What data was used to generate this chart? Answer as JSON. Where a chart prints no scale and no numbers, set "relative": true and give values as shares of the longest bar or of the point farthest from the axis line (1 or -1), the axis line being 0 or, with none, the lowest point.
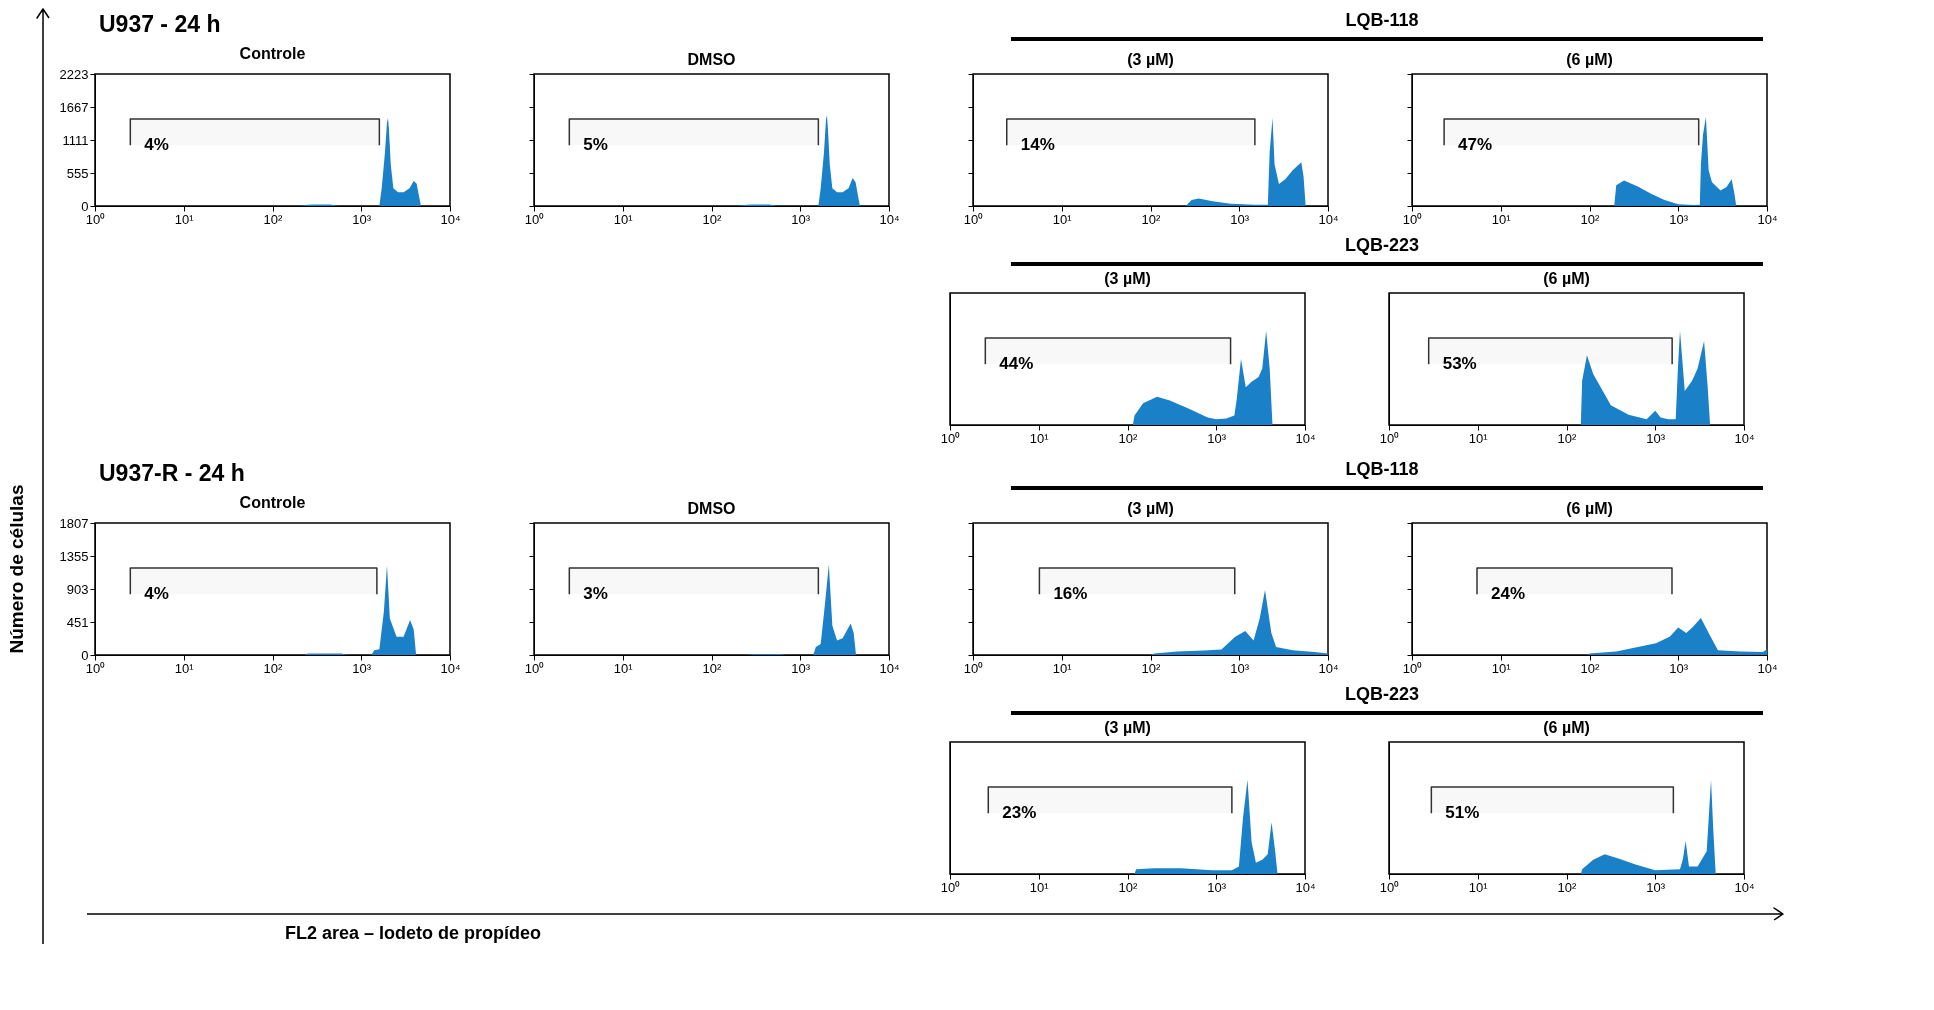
{
  "chart_data": [
    {
      "type": "other",
      "title": "U937  - 24 h"
    },
    {
      "type": "other",
      "title": "LQB-118"
    },
    {
      "type": "area",
      "title": "Controle",
      "log": "x",
      "grid": false,
      "xlim": [
        1,
        10000
      ],
      "ylim": [
        0,
        2223
      ],
      "xticks": [
        {
          "value": 1,
          "label": "10⁰"
        },
        {
          "value": 10,
          "label": "10¹"
        },
        {
          "value": 100,
          "label": "10²"
        },
        {
          "value": 1000,
          "label": "10³"
        },
        {
          "value": 10000,
          "label": "10⁴"
        }
      ],
      "yticks": [
        0,
        555,
        1111,
        1667,
        2223
      ],
      "x": [
        1,
        200,
        250,
        300,
        450,
        550,
        1600,
        1700,
        1850,
        1950,
        2000,
        2050,
        2150,
        2300,
        2600,
        3000,
        3500,
        3900,
        4200,
        4500,
        4700,
        10000
      ],
      "series": [
        {
          "color": "#1a80c8",
          "values": [
            0,
            0,
            20,
            25,
            25,
            0,
            0,
            300,
            900,
            1400,
            1480,
            1300,
            700,
            300,
            230,
            230,
            300,
            420,
            380,
            150,
            0,
            0
          ]
        }
      ],
      "bands": [
        {
          "axis": "x",
          "from": 2.5,
          "to": 1600,
          "label": "4%"
        }
      ]
    },
    {
      "type": "area",
      "title": "DMSO",
      "log": "x",
      "grid": false,
      "tick_labels": "x",
      "xlim": [
        1,
        10000
      ],
      "ylim": [
        0,
        2223
      ],
      "xticks": [
        {
          "value": 1,
          "label": "10⁰"
        },
        {
          "value": 10,
          "label": "10¹"
        },
        {
          "value": 100,
          "label": "10²"
        },
        {
          "value": 1000,
          "label": "10³"
        },
        {
          "value": 10000,
          "label": "10⁴"
        }
      ],
      "yticks": [
        0,
        555,
        1111,
        1667,
        2223
      ],
      "x": [
        1,
        200,
        250,
        300,
        450,
        550,
        1600,
        1700,
        1850,
        1950,
        2000,
        2050,
        2150,
        2300,
        2600,
        3000,
        3500,
        3900,
        4200,
        4500,
        4700,
        10000
      ],
      "series": [
        {
          "color": "#1a80c8",
          "values": [
            0,
            0,
            20,
            25,
            25,
            0,
            0,
            300,
            900,
            1450,
            1530,
            1300,
            700,
            300,
            230,
            230,
            300,
            470,
            400,
            150,
            0,
            0
          ]
        }
      ],
      "bands": [
        {
          "axis": "x",
          "from": 2.5,
          "to": 1600,
          "label": "5%"
        }
      ]
    },
    {
      "type": "area",
      "title": "(3 µM)",
      "log": "x",
      "grid": false,
      "tick_labels": "x",
      "xlim": [
        1,
        10000
      ],
      "ylim": [
        0,
        2223
      ],
      "xticks": [
        {
          "value": 1,
          "label": "10⁰"
        },
        {
          "value": 10,
          "label": "10¹"
        },
        {
          "value": 100,
          "label": "10²"
        },
        {
          "value": 1000,
          "label": "10³"
        },
        {
          "value": 10000,
          "label": "10⁴"
        }
      ],
      "yticks": [
        0,
        555,
        1111,
        1667,
        2223
      ],
      "x": [
        1,
        250,
        290,
        350,
        500,
        800,
        1500,
        2100,
        2200,
        2370,
        2500,
        2800,
        3300,
        4000,
        5000,
        5300,
        5600,
        10000
      ],
      "series": [
        {
          "color": "#1a80c8",
          "values": [
            0,
            0,
            100,
            125,
            80,
            40,
            20,
            20,
            900,
            1480,
            700,
            370,
            450,
            600,
            735,
            500,
            0,
            0
          ]
        }
      ],
      "bands": [
        {
          "axis": "x",
          "from": 2.4,
          "to": 1500,
          "label": "14%"
        }
      ]
    },
    {
      "type": "area",
      "title": "(6 µM)",
      "log": "x",
      "grid": false,
      "tick_labels": "x",
      "xlim": [
        1,
        10000
      ],
      "ylim": [
        0,
        2223
      ],
      "xticks": [
        {
          "value": 1,
          "label": "10⁰"
        },
        {
          "value": 10,
          "label": "10¹"
        },
        {
          "value": 100,
          "label": "10²"
        },
        {
          "value": 1000,
          "label": "10³"
        },
        {
          "value": 10000,
          "label": "10⁴"
        }
      ],
      "yticks": [
        0,
        555,
        1111,
        1667,
        2223
      ],
      "x": [
        1,
        190,
        200,
        245,
        350,
        500,
        700,
        1000,
        1500,
        1750,
        1800,
        1900,
        2050,
        2200,
        2400,
        3000,
        3500,
        4000,
        4300,
        4500,
        10000
      ],
      "series": [
        {
          "color": "#1a80c8",
          "values": [
            0,
            0,
            350,
            430,
            330,
            200,
            100,
            30,
            15,
            20,
            700,
            1200,
            1500,
            600,
            400,
            260,
            320,
            450,
            200,
            0,
            0
          ]
        }
      ],
      "bands": [
        {
          "axis": "x",
          "from": 2.3,
          "to": 1700,
          "label": "47%"
        }
      ]
    },
    {
      "type": "other",
      "title": "LQB-223"
    },
    {
      "type": "area",
      "title": "(3 µM)",
      "log": "x",
      "grid": false,
      "relative": true,
      "xlim": [
        1,
        10000
      ],
      "xticks": [
        {
          "value": 1,
          "label": "10⁰"
        },
        {
          "value": 10,
          "label": "10¹"
        },
        {
          "value": 100,
          "label": "10²"
        },
        {
          "value": 1000,
          "label": "10³"
        },
        {
          "value": 10000,
          "label": "10⁴"
        }
      ],
      "x": [
        1,
        115,
        120,
        150,
        215,
        300,
        500,
        800,
        1000,
        1300,
        1600,
        1700,
        1900,
        2150,
        2500,
        3000,
        3300,
        3650,
        4000,
        4300,
        10000
      ],
      "series": [
        {
          "color": "#1a80c8",
          "values": [
            0,
            0,
            0.1,
            0.23,
            0.3,
            0.26,
            0.17,
            0.08,
            0.06,
            0.07,
            0.1,
            0.27,
            0.7,
            0.4,
            0.46,
            0.51,
            0.6,
            1,
            0.6,
            0,
            0
          ]
        }
      ],
      "bands": [
        {
          "axis": "x",
          "from": 2.5,
          "to": 1450,
          "label": "44%"
        }
      ]
    },
    {
      "type": "area",
      "title": "(6 µM)",
      "log": "x",
      "grid": false,
      "relative": true,
      "xlim": [
        1,
        10000
      ],
      "xticks": [
        {
          "value": 1,
          "label": "10⁰"
        },
        {
          "value": 10,
          "label": "10¹"
        },
        {
          "value": 100,
          "label": "10²"
        },
        {
          "value": 1000,
          "label": "10³"
        },
        {
          "value": 10000,
          "label": "10⁴"
        }
      ],
      "x": [
        1,
        145,
        150,
        170,
        200,
        316,
        500,
        800,
        1000,
        1150,
        1400,
        1700,
        1800,
        1900,
        2150,
        2600,
        3000,
        3550,
        3900,
        4150,
        10000
      ],
      "series": [
        {
          "color": "#1a80c8",
          "values": [
            0,
            0,
            0.47,
            0.74,
            0.54,
            0.21,
            0.11,
            0.06,
            0.15,
            0.08,
            0.06,
            0.06,
            0.6,
            1,
            0.36,
            0.47,
            0.6,
            0.89,
            0.4,
            0,
            0
          ]
        }
      ],
      "bands": [
        {
          "axis": "x",
          "from": 2.8,
          "to": 1550,
          "label": "53%"
        }
      ]
    },
    {
      "type": "other",
      "title": "U937-R - 24 h"
    },
    {
      "type": "other",
      "title": "LQB-118"
    },
    {
      "type": "area",
      "title": "Controle",
      "log": "x",
      "grid": false,
      "xlim": [
        1,
        10000
      ],
      "ylim": [
        0,
        1807
      ],
      "xticks": [
        {
          "value": 1,
          "label": "10⁰"
        },
        {
          "value": 10,
          "label": "10¹"
        },
        {
          "value": 100,
          "label": "10²"
        },
        {
          "value": 1000,
          "label": "10³"
        },
        {
          "value": 10000,
          "label": "10⁴"
        }
      ],
      "yticks": [
        0,
        451,
        903,
        1355,
        1807
      ],
      "x": [
        1,
        230,
        250,
        400,
        600,
        700,
        1300,
        1400,
        1600,
        1800,
        1950,
        2100,
        2500,
        3000,
        3550,
        3900,
        4150,
        10000
      ],
      "series": [
        {
          "color": "#1a80c8",
          "values": [
            0,
            0,
            20,
            20,
            20,
            0,
            0,
            65,
            80,
            600,
            1230,
            500,
            250,
            250,
            480,
            350,
            0,
            0
          ]
        }
      ],
      "bands": [
        {
          "axis": "x",
          "from": 2.5,
          "to": 1500,
          "label": "4%"
        }
      ]
    },
    {
      "type": "area",
      "title": "DMSO",
      "log": "x",
      "grid": false,
      "tick_labels": "x",
      "xlim": [
        1,
        10000
      ],
      "ylim": [
        0,
        1807
      ],
      "xticks": [
        {
          "value": 1,
          "label": "10⁰"
        },
        {
          "value": 10,
          "label": "10¹"
        },
        {
          "value": 100,
          "label": "10²"
        },
        {
          "value": 1000,
          "label": "10³"
        },
        {
          "value": 10000,
          "label": "10⁴"
        }
      ],
      "yticks": [
        0,
        451,
        903,
        1355,
        1807
      ],
      "x": [
        1,
        250,
        300,
        400,
        600,
        700,
        1400,
        1500,
        1700,
        1900,
        2100,
        2300,
        2600,
        3000,
        3700,
        4000,
        4250,
        10000
      ],
      "series": [
        {
          "color": "#1a80c8",
          "values": [
            0,
            0,
            15,
            15,
            15,
            0,
            0,
            110,
            150,
            700,
            1240,
            400,
            200,
            230,
            430,
            300,
            0,
            0
          ]
        }
      ],
      "bands": [
        {
          "axis": "x",
          "from": 2.5,
          "to": 1600,
          "label": "3%"
        }
      ]
    },
    {
      "type": "area",
      "title": "(3 µM)",
      "log": "x",
      "grid": false,
      "tick_labels": "x",
      "xlim": [
        1,
        10000
      ],
      "ylim": [
        0,
        1807
      ],
      "xticks": [
        {
          "value": 1,
          "label": "10⁰"
        },
        {
          "value": 10,
          "label": "10¹"
        },
        {
          "value": 100,
          "label": "10²"
        },
        {
          "value": 1000,
          "label": "10³"
        },
        {
          "value": 10000,
          "label": "10⁴"
        }
      ],
      "yticks": [
        0,
        451,
        903,
        1355,
        1807
      ],
      "x": [
        1,
        100,
        110,
        200,
        400,
        630,
        900,
        1170,
        1450,
        1700,
        1950,
        2300,
        2600,
        4000,
        7000,
        10000
      ],
      "series": [
        {
          "color": "#1a80c8",
          "values": [
            0,
            0,
            20,
            47,
            60,
            75,
            250,
            330,
            200,
            500,
            890,
            300,
            110,
            65,
            40,
            20
          ]
        }
      ],
      "bands": [
        {
          "axis": "x",
          "from": 5.6,
          "to": 890,
          "label": "16%"
        }
      ]
    },
    {
      "type": "area",
      "title": "(6 µM)",
      "log": "x",
      "grid": false,
      "tick_labels": "x",
      "xlim": [
        1,
        10000
      ],
      "ylim": [
        0,
        1807
      ],
      "xticks": [
        {
          "value": 1,
          "label": "10⁰"
        },
        {
          "value": 10,
          "label": "10¹"
        },
        {
          "value": 100,
          "label": "10²"
        },
        {
          "value": 1000,
          "label": "10³"
        },
        {
          "value": 10000,
          "label": "10⁴"
        }
      ],
      "yticks": [
        0,
        451,
        903,
        1355,
        1807
      ],
      "x": [
        1,
        95,
        100,
        200,
        560,
        800,
        1000,
        1230,
        1450,
        1800,
        2200,
        2800,
        5000,
        9000,
        10000
      ],
      "series": [
        {
          "color": "#1a80c8",
          "values": [
            0,
            0,
            20,
            47,
            160,
            250,
            375,
            300,
            380,
            505,
            300,
            65,
            47,
            40,
            80
          ]
        }
      ],
      "bands": [
        {
          "axis": "x",
          "from": 5.4,
          "to": 850,
          "label": "24%"
        }
      ]
    },
    {
      "type": "other",
      "title": "LQB-223"
    },
    {
      "type": "area",
      "title": "(3 µM)",
      "log": "x",
      "grid": false,
      "relative": true,
      "xlim": [
        1,
        10000
      ],
      "xticks": [
        {
          "value": 1,
          "label": "10⁰"
        },
        {
          "value": 10,
          "label": "10¹"
        },
        {
          "value": 100,
          "label": "10²"
        },
        {
          "value": 1000,
          "label": "10³"
        },
        {
          "value": 10000,
          "label": "10⁴"
        }
      ],
      "x": [
        1,
        120,
        125,
        200,
        400,
        900,
        1500,
        1800,
        2000,
        2250,
        2500,
        2800,
        3300,
        3800,
        4200,
        4600,
        4900,
        10000
      ],
      "series": [
        {
          "color": "#1a80c8",
          "values": [
            0,
            0,
            0.05,
            0.06,
            0.06,
            0.04,
            0.04,
            0.08,
            0.59,
            1,
            0.34,
            0.12,
            0.15,
            0.21,
            0.55,
            0.25,
            0,
            0
          ]
        }
      ],
      "bands": [
        {
          "axis": "x",
          "from": 2.7,
          "to": 1500,
          "label": "23%"
        }
      ]
    },
    {
      "type": "area",
      "title": "(6 µM)",
      "log": "x",
      "grid": false,
      "relative": true,
      "xlim": [
        1,
        10000
      ],
      "xticks": [
        {
          "value": 1,
          "label": "10⁰"
        },
        {
          "value": 10,
          "label": "10¹"
        },
        {
          "value": 100,
          "label": "10²"
        },
        {
          "value": 1000,
          "label": "10³"
        },
        {
          "value": 10000,
          "label": "10⁴"
        }
      ],
      "x": [
        1,
        145,
        150,
        200,
        270,
        400,
        600,
        1000,
        1900,
        2050,
        2200,
        2400,
        3000,
        3800,
        4250,
        4500,
        4800,
        10000
      ],
      "series": [
        {
          "color": "#1a80c8",
          "values": [
            0,
            0,
            0.05,
            0.15,
            0.21,
            0.16,
            0.1,
            0.04,
            0.05,
            0.16,
            0.35,
            0.08,
            0.08,
            0.24,
            1,
            0.48,
            0,
            0
          ]
        }
      ],
      "bands": [
        {
          "axis": "x",
          "from": 3.0,
          "to": 1600,
          "label": "51%"
        }
      ]
    },
    {
      "type": "other",
      "xlabel": "FL2 area  – Iodeto de propídeo",
      "ylabel": "Número de células"
    }
  ]
}
